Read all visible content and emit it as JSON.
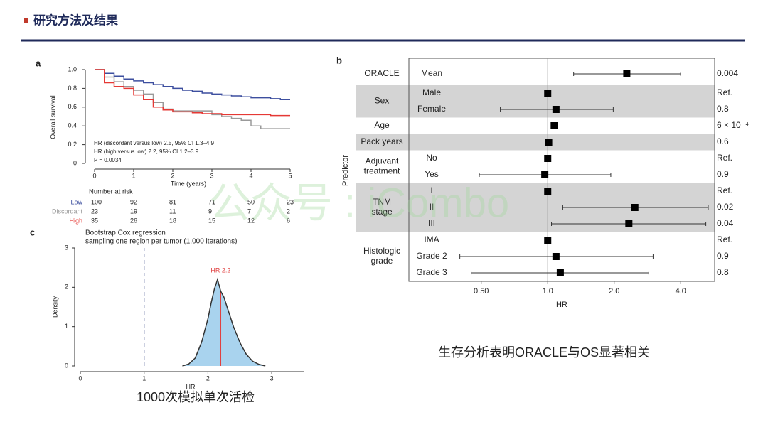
{
  "header": {
    "title": "研究方法及结果"
  },
  "watermark": "公众号 : iCombo",
  "captions": [
    "生存分析表明ORACLE与OS显著相关",
    "1000次模拟单次活检"
  ],
  "chart_data": [
    {
      "type": "step",
      "panel": "a",
      "xlabel": "Time (years)",
      "ylabel": "Overall survival",
      "xlim": [
        0,
        5
      ],
      "xticks": [
        0,
        1,
        2,
        3,
        4,
        5
      ],
      "ylim": [
        0,
        1
      ],
      "yticks": [
        0,
        0.2,
        0.4,
        0.6,
        0.8,
        {
          "value": 1,
          "label": "1.0"
        }
      ],
      "x": [
        0,
        0.25,
        0.5,
        0.75,
        1,
        1.25,
        1.5,
        1.75,
        2,
        2.25,
        2.5,
        2.75,
        3,
        3.25,
        3.5,
        3.75,
        4,
        4.25,
        4.5,
        4.75,
        5
      ],
      "series": [
        {
          "name": "Low",
          "color": "#3d4f9f",
          "values": [
            1.0,
            0.96,
            0.93,
            0.9,
            0.88,
            0.86,
            0.84,
            0.82,
            0.8,
            0.78,
            0.77,
            0.75,
            0.74,
            0.73,
            0.72,
            0.71,
            0.7,
            0.7,
            0.69,
            0.68,
            0.68
          ]
        },
        {
          "name": "Discordant",
          "color": "#9a9a9a",
          "values": [
            1.0,
            0.92,
            0.87,
            0.82,
            0.78,
            0.74,
            0.65,
            0.58,
            0.56,
            0.56,
            0.56,
            0.56,
            0.52,
            0.5,
            0.48,
            0.46,
            0.4,
            0.37,
            0.37,
            0.37,
            0.37
          ]
        },
        {
          "name": "High",
          "color": "#e53935",
          "values": [
            1.0,
            0.86,
            0.82,
            0.8,
            0.73,
            0.68,
            0.6,
            0.57,
            0.55,
            0.55,
            0.54,
            0.53,
            0.53,
            0.52,
            0.52,
            0.52,
            0.52,
            0.52,
            0.51,
            0.51,
            0.51
          ]
        }
      ],
      "annotations": [
        "HR (discordant versus low) 2.5, 95% CI 1.3–4.9",
        "HR (high versus low) 2.2, 95% CI 1.2–3.9",
        "P = 0.0034"
      ],
      "risk_table": {
        "title": "Number at risk",
        "values": [
          [
            100,
            92,
            81,
            71,
            50,
            23
          ],
          [
            23,
            19,
            11,
            9,
            7,
            2
          ],
          [
            35,
            26,
            18,
            15,
            12,
            6
          ]
        ]
      }
    },
    {
      "type": "density",
      "panel": "c",
      "title": [
        "Bootstrap Cox regression",
        "sampling one region per tumor (1,000 iterations)"
      ],
      "xlabel": "HR",
      "ylabel": "Density",
      "xlim": [
        0,
        3.5
      ],
      "xticks": [
        0,
        1,
        2,
        3
      ],
      "ylim": [
        0,
        3
      ],
      "yticks": [
        0,
        1,
        2,
        3
      ],
      "x": [
        1.6,
        1.7,
        1.8,
        1.9,
        2.0,
        2.05,
        2.1,
        2.15,
        2.2,
        2.25,
        2.3,
        2.4,
        2.5,
        2.6,
        2.7,
        2.8,
        2.9
      ],
      "values": [
        0,
        0.05,
        0.2,
        0.6,
        1.2,
        1.6,
        1.95,
        2.2,
        1.9,
        1.75,
        1.5,
        1.0,
        0.6,
        0.3,
        0.12,
        0.04,
        0
      ],
      "fill": "#a9d3ee",
      "color": "#333333",
      "reference_line": 1,
      "reference_color": "#5b6b9e",
      "marker": {
        "value": 2.2,
        "label": "HR 2.2",
        "color": "#e04040"
      }
    },
    {
      "type": "forest",
      "panel": "b",
      "xlabel": "HR",
      "ylabel": "Predictor",
      "log_x": true,
      "xlim": [
        0.23,
        5.7
      ],
      "xticks": [
        {
          "value": 0.5,
          "label": "0.50"
        },
        {
          "value": 1,
          "label": "1.0"
        },
        {
          "value": 2,
          "label": "2.0"
        },
        {
          "value": 4,
          "label": "4.0"
        }
      ],
      "reference_line": 1,
      "shade_color": "#d4d4d4",
      "groups": [
        {
          "label": [
            "ORACLE"
          ],
          "shaded": false,
          "rows": [
            {
              "name": "Mean",
              "hr": 2.28,
              "ci": [
                1.31,
                4.0
              ],
              "p": 0.004
            }
          ]
        },
        {
          "label": [
            "Sex"
          ],
          "shaded": true,
          "rows": [
            {
              "name": "Male",
              "hr": 1,
              "p": "Ref."
            },
            {
              "name": "Female",
              "hr": 1.09,
              "ci": [
                0.61,
                1.98
              ],
              "p": 0.8
            }
          ]
        },
        {
          "label": [
            "Age"
          ],
          "shaded": false,
          "rows": [
            {
              "hr": 1.07,
              "p": "6 × 10⁻⁴"
            }
          ]
        },
        {
          "label": [
            "Pack years"
          ],
          "shaded": true,
          "rows": [
            {
              "hr": 1.01,
              "p": 0.6
            }
          ]
        },
        {
          "label": [
            "Adjuvant",
            "treatment"
          ],
          "shaded": false,
          "rows": [
            {
              "name": "No",
              "hr": 1,
              "p": "Ref."
            },
            {
              "name": "Yes",
              "hr": 0.97,
              "ci": [
                0.49,
                1.93
              ],
              "p": 0.9
            }
          ]
        },
        {
          "label": [
            "TNM",
            "stage"
          ],
          "shaded": true,
          "rows": [
            {
              "name": "I",
              "hr": 1,
              "p": "Ref."
            },
            {
              "name": "II",
              "hr": 2.48,
              "ci": [
                1.17,
                5.33
              ],
              "p": 0.02
            },
            {
              "name": "III",
              "hr": 2.33,
              "ci": [
                1.04,
                5.2
              ],
              "p": 0.04
            }
          ]
        },
        {
          "label": [
            "Histologic",
            "grade"
          ],
          "shaded": false,
          "rows": [
            {
              "name": "IMA",
              "hr": 1,
              "p": "Ref."
            },
            {
              "name": "Grade 2",
              "hr": 1.09,
              "ci": [
                0.4,
                3.0
              ],
              "p": 0.9
            },
            {
              "name": "Grade 3",
              "hr": 1.14,
              "ci": [
                0.45,
                2.87
              ],
              "p": 0.8
            }
          ]
        }
      ]
    }
  ]
}
